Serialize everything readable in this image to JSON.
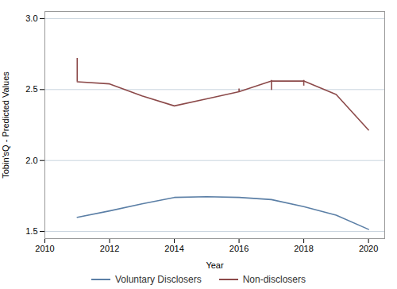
{
  "chart_data": {
    "type": "line",
    "xlabel": "Year",
    "ylabel": "Tobin'sQ - Predicted Values",
    "series": [
      {
        "name": "Voluntary Disclosers",
        "color": "#5b7fa6",
        "x": [
          2011,
          2012,
          2013,
          2014,
          2015,
          2016,
          2017,
          2018,
          2019,
          2020
        ],
        "values": [
          1.6,
          1.645,
          1.695,
          1.74,
          1.745,
          1.74,
          1.725,
          1.675,
          1.615,
          1.515
        ]
      },
      {
        "name": "Non-disclosers",
        "color": "#8c4a4a",
        "x": [
          2011,
          2012,
          2013,
          2014,
          2015,
          2016,
          2017,
          2018,
          2019,
          2020
        ],
        "values": [
          2.555,
          2.54,
          2.455,
          2.385,
          2.435,
          2.485,
          2.56,
          2.56,
          2.465,
          2.215
        ],
        "intervals": [
          {
            "x": 2011,
            "low": 2.555,
            "high": 2.72
          },
          {
            "x": 2016,
            "low": 2.485,
            "high": 2.505
          },
          {
            "x": 2017,
            "low": 2.495,
            "high": 2.565
          },
          {
            "x": 2018,
            "low": 2.525,
            "high": 2.565
          }
        ]
      }
    ],
    "xlim": [
      2010.0,
      2020.5
    ],
    "xticks": [
      2010,
      2012,
      2014,
      2016,
      2018,
      2020
    ],
    "ylim": [
      1.45,
      3.05
    ],
    "yticks": [
      1.5,
      {
        "value": 2,
        "label": "2.0"
      },
      2.5,
      {
        "value": 3,
        "label": "3.0"
      }
    ],
    "grid": "y",
    "legend": "bottom"
  }
}
